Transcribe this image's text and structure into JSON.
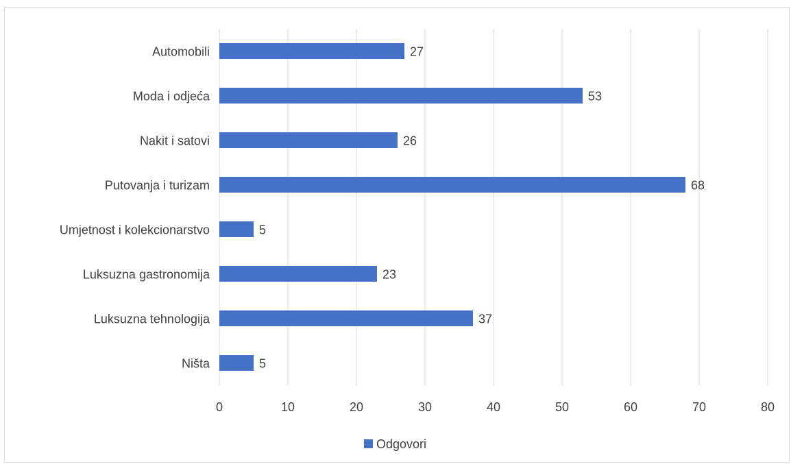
{
  "chart_data": {
    "type": "bar",
    "orientation": "horizontal",
    "categories": [
      "Automobili",
      "Moda i odjeća",
      "Nakit i satovi",
      "Putovanja i turizam",
      "Umjetnost i kolekcionarstvo",
      "Luksuzna gastronomija",
      "Luksuzna tehnologija",
      "Ništa"
    ],
    "series": [
      {
        "name": "Odgovori",
        "values": [
          27,
          53,
          26,
          68,
          5,
          23,
          37,
          5
        ],
        "color": "#4472c4"
      }
    ],
    "xlim": [
      0,
      80
    ],
    "xticks": [
      0,
      10,
      20,
      30,
      40,
      50,
      60,
      70,
      80
    ],
    "grid": "vertical",
    "legend": "bottom-center",
    "data_labels": true
  }
}
